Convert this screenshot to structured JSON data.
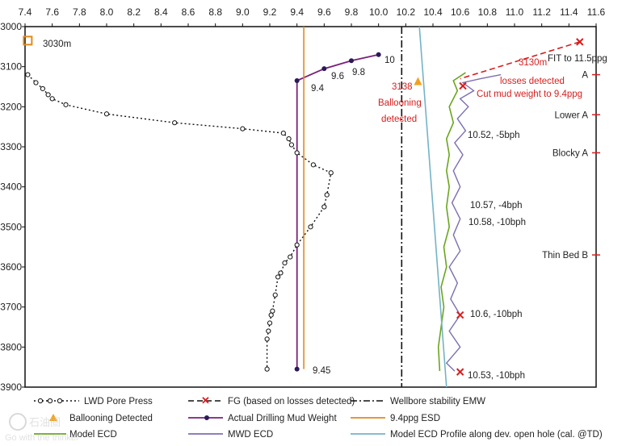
{
  "chart_data": {
    "type": "line",
    "xlim": [
      7.4,
      11.6
    ],
    "ylim": [
      3000,
      3900
    ],
    "x_ticks": [
      "7.4",
      "7.6",
      "7.8",
      "8.0",
      "8.2",
      "8.4",
      "8.6",
      "8.8",
      "9.0",
      "9.2",
      "9.4",
      "9.6",
      "9.8",
      "10.0",
      "10.2",
      "10.4",
      "10.6",
      "10.8",
      "11.0",
      "11.2",
      "11.4",
      "11.6"
    ],
    "y_ticks": [
      "3000",
      "3100",
      "3200",
      "3300",
      "3400",
      "3500",
      "3600",
      "3700",
      "3800",
      "3900"
    ],
    "series": [
      {
        "name": "LWD Pore Press",
        "color": "#111111",
        "points": [
          [
            7.42,
            3120
          ],
          [
            7.48,
            3140
          ],
          [
            7.53,
            3155
          ],
          [
            7.57,
            3170
          ],
          [
            7.6,
            3180
          ],
          [
            7.7,
            3195
          ],
          [
            8.0,
            3218
          ],
          [
            8.5,
            3240
          ],
          [
            9.0,
            3255
          ],
          [
            9.3,
            3266
          ],
          [
            9.34,
            3280
          ],
          [
            9.36,
            3295
          ],
          [
            9.4,
            3315
          ],
          [
            9.52,
            3345
          ],
          [
            9.65,
            3365
          ],
          [
            9.62,
            3420
          ],
          [
            9.6,
            3450
          ],
          [
            9.5,
            3500
          ],
          [
            9.4,
            3545
          ],
          [
            9.35,
            3575
          ],
          [
            9.31,
            3590
          ],
          [
            9.28,
            3615
          ],
          [
            9.26,
            3625
          ],
          [
            9.24,
            3670
          ],
          [
            9.22,
            3710
          ],
          [
            9.21,
            3720
          ],
          [
            9.2,
            3740
          ],
          [
            9.19,
            3760
          ],
          [
            9.18,
            3780
          ],
          [
            9.18,
            3855
          ]
        ]
      },
      {
        "name": "FG (based on losses detected)",
        "color": "#d81e1e",
        "points": [
          [
            11.48,
            3038
          ],
          [
            10.6,
            3130
          ]
        ]
      },
      {
        "name": "Wellbore stability EMW",
        "color": "#111111",
        "points": [
          [
            10.17,
            3000
          ],
          [
            10.17,
            3900
          ]
        ]
      },
      {
        "name": "Actual Drilling Mud Weight",
        "color": "#7a1f7a",
        "points": [
          [
            10.0,
            3070
          ],
          [
            9.8,
            3085
          ],
          [
            9.6,
            3105
          ],
          [
            9.4,
            3135
          ],
          [
            9.4,
            3855
          ]
        ]
      },
      {
        "name": "9.4ppg ESD",
        "color": "#e08a1e",
        "points": [
          [
            9.45,
            3000
          ],
          [
            9.45,
            3855
          ]
        ]
      },
      {
        "name": "Model ECD",
        "color": "#6aa51f",
        "points": [
          [
            10.64,
            3115
          ],
          [
            10.55,
            3135
          ],
          [
            10.58,
            3160
          ],
          [
            10.52,
            3200
          ],
          [
            10.55,
            3240
          ],
          [
            10.5,
            3280
          ],
          [
            10.52,
            3320
          ],
          [
            10.5,
            3360
          ],
          [
            10.52,
            3400
          ],
          [
            10.5,
            3450
          ],
          [
            10.52,
            3500
          ],
          [
            10.48,
            3550
          ],
          [
            10.5,
            3600
          ],
          [
            10.46,
            3650
          ],
          [
            10.48,
            3700
          ],
          [
            10.46,
            3750
          ],
          [
            10.44,
            3800
          ],
          [
            10.45,
            3860
          ]
        ]
      },
      {
        "name": "MWD ECD",
        "color": "#7b6fb0",
        "points": [
          [
            10.9,
            3120
          ],
          [
            10.75,
            3130
          ],
          [
            10.62,
            3140
          ],
          [
            10.7,
            3160
          ],
          [
            10.6,
            3180
          ],
          [
            10.66,
            3200
          ],
          [
            10.58,
            3230
          ],
          [
            10.64,
            3260
          ],
          [
            10.56,
            3290
          ],
          [
            10.62,
            3320
          ],
          [
            10.55,
            3360
          ],
          [
            10.6,
            3400
          ],
          [
            10.54,
            3440
          ],
          [
            10.6,
            3480
          ],
          [
            10.55,
            3520
          ],
          [
            10.6,
            3560
          ],
          [
            10.52,
            3600
          ],
          [
            10.58,
            3640
          ],
          [
            10.53,
            3680
          ],
          [
            10.6,
            3720
          ],
          [
            10.52,
            3760
          ],
          [
            10.6,
            3800
          ],
          [
            10.5,
            3840
          ],
          [
            10.56,
            3860
          ]
        ]
      },
      {
        "name": "Model ECD Profile along dev. open hole (cal. @TD)",
        "color": "#74b3c6",
        "points": [
          [
            10.3,
            3000
          ],
          [
            10.5,
            3900
          ]
        ]
      }
    ],
    "points_of_interest": {
      "ballooning": {
        "x": 10.29,
        "y": 3138
      },
      "marker_3030": {
        "x": 7.42,
        "y": 3035
      },
      "fg_markers": [
        [
          11.48,
          3038
        ],
        [
          10.62,
          3148
        ],
        [
          10.6,
          3720
        ],
        [
          10.6,
          3862
        ]
      ]
    },
    "annotations": {
      "label_3030m": "3030m",
      "mw_10": "10",
      "mw_98": "9.8",
      "mw_96": "9.6",
      "mw_94": "9.4",
      "mw_945": "9.45",
      "fit": "FIT to 11.5ppg",
      "losses_1": "3130m",
      "losses_2": "losses detected",
      "losses_3": "Cut mud weight to 9.4ppg",
      "balloon_1": "3138",
      "balloon_2": "Ballooning",
      "balloon_3": "detected",
      "p1": "10.52, -5bph",
      "p2": "10.57, -4bph",
      "p3": "10.58, -10bph",
      "p4": "10.6, -10bph",
      "p5": "10.53, -10bph"
    },
    "formation_markers": [
      {
        "label": "A",
        "y": 3120
      },
      {
        "label": "Lower A",
        "y": 3220
      },
      {
        "label": "Blocky A",
        "y": 3315
      },
      {
        "label": "Thin Bed B",
        "y": 3570
      }
    ],
    "legend": {
      "placement": "bottom",
      "entries": {
        "lwd": "LWD Pore Press",
        "fg": "FG (based on losses detected)",
        "wsemw": "Wellbore stability EMW",
        "ballooning": "Ballooning Detected",
        "mudweight": "Actual Drilling Mud Weight",
        "esd": "9.4ppg ESD",
        "modelecd": "Model ECD",
        "mwdecd": "MWD ECD",
        "profile": "Model ECD Profile along dev. open hole (cal. @TD)"
      }
    }
  },
  "watermark": {
    "line1": "石油圈",
    "line2": "Go with the thinker"
  }
}
